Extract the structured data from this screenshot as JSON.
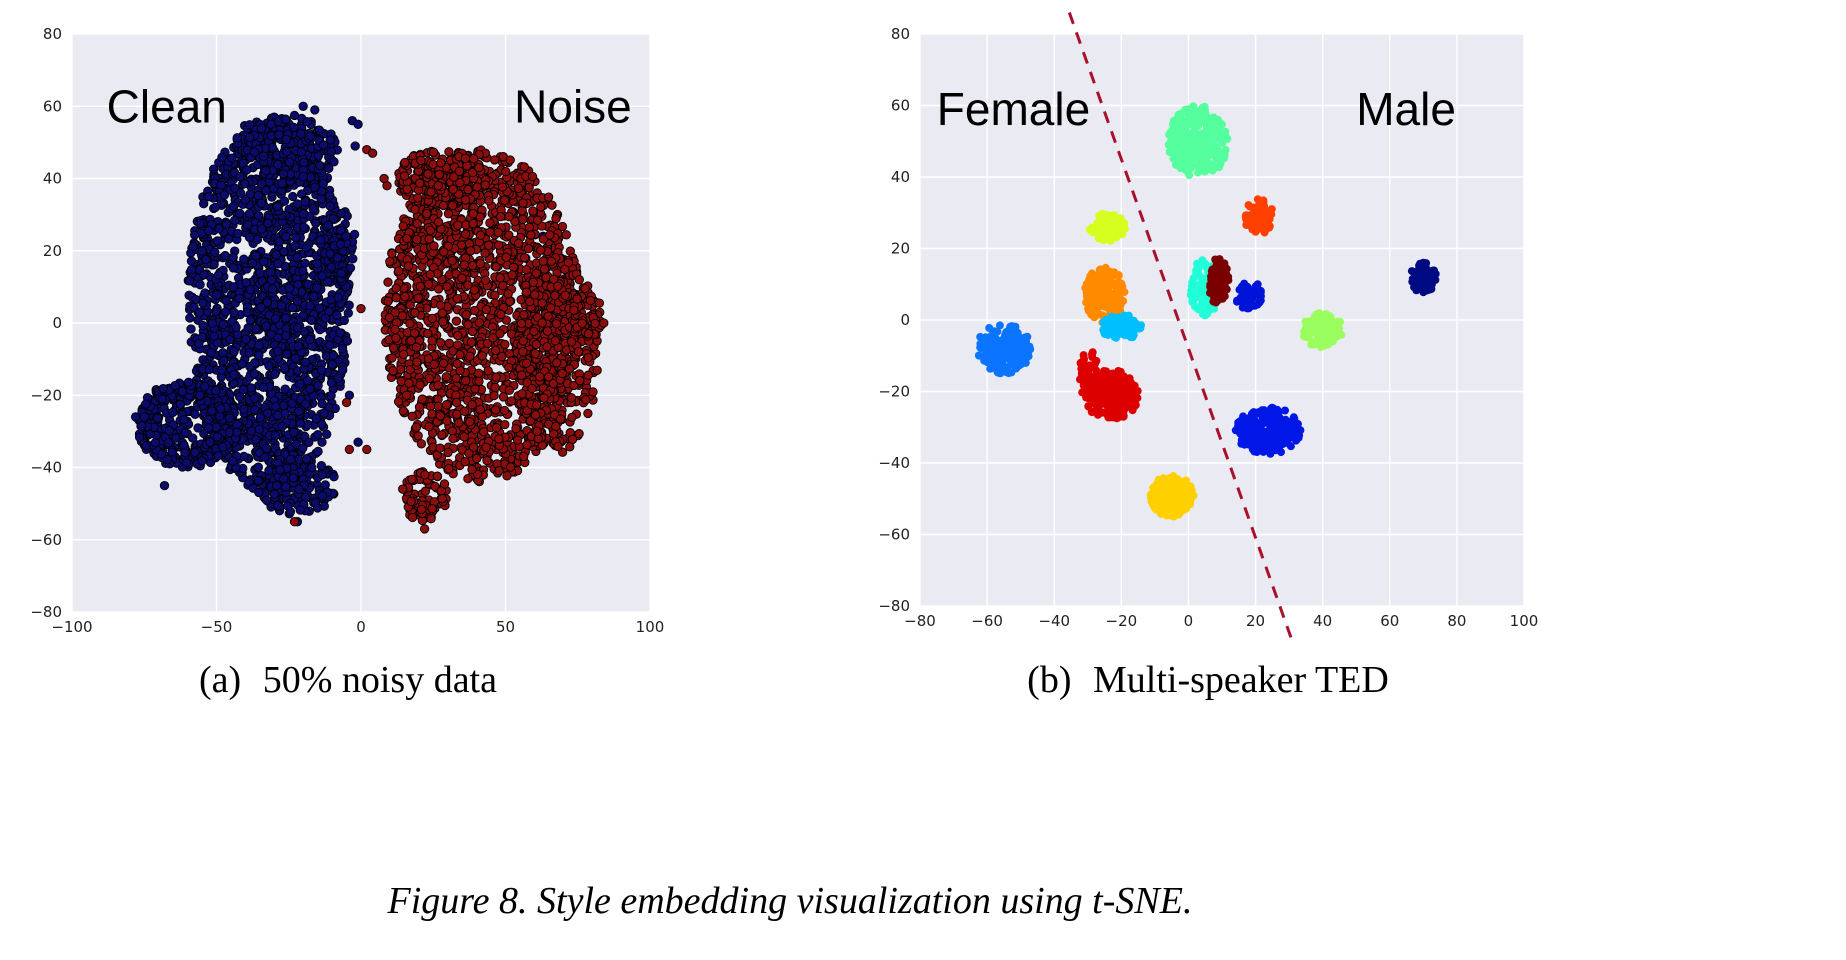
{
  "figure": {
    "caption": "Figure 8. Style embedding visualization using t-SNE."
  },
  "chart_data": [
    {
      "type": "scatter",
      "subcaption_label": "(a)",
      "subcaption_text": "50% noisy data",
      "xlim": [
        -100,
        100
      ],
      "ylim": [
        -80,
        80
      ],
      "xticks": [
        -100,
        -50,
        0,
        50,
        100
      ],
      "yticks": [
        -80,
        -60,
        -40,
        -20,
        0,
        20,
        40,
        60,
        80
      ],
      "xtick_labels": [
        "−100",
        "−50",
        "0",
        "50",
        "100"
      ],
      "ytick_labels": [
        "−80",
        "−60",
        "−40",
        "−20",
        "0",
        "20",
        "40",
        "60",
        "80"
      ],
      "grid": true,
      "background": "#eaeaf2",
      "annotations": [
        {
          "text": "Clean",
          "x": -88,
          "y": 60
        },
        {
          "text": "Noise",
          "x": 53,
          "y": 60
        }
      ],
      "series": [
        {
          "color": "#0b0b6e",
          "edge": "#000000",
          "radius": 4.2,
          "regions": [
            {
              "cx": -32,
              "cy": 5,
              "rx": 28,
              "ry": 52,
              "n": 1700,
              "falloff": 0.55
            },
            {
              "cx": -60,
              "cy": -28,
              "rx": 18,
              "ry": 12,
              "n": 380,
              "falloff": 0.4
            },
            {
              "cx": -24,
              "cy": 48,
              "rx": 16,
              "ry": 10,
              "n": 180,
              "falloff": 0.5
            },
            {
              "cx": -22,
              "cy": -45,
              "rx": 14,
              "ry": 8,
              "n": 140,
              "falloff": 0.5
            },
            {
              "cx": -8,
              "cy": 22,
              "rx": 6,
              "ry": 10,
              "n": 60,
              "falloff": 0.6
            }
          ],
          "points": [
            [
              -20,
              60
            ],
            [
              -3,
              56
            ],
            [
              -1,
              55
            ],
            [
              -16,
              59
            ],
            [
              -2,
              49
            ],
            [
              60,
              -13
            ],
            [
              63,
              24
            ],
            [
              -78,
              -26
            ],
            [
              -75,
              -26
            ],
            [
              -68,
              -45
            ],
            [
              -22,
              -55
            ],
            [
              -4,
              -20
            ],
            [
              -1,
              -33
            ]
          ]
        },
        {
          "color": "#8b0d0d",
          "edge": "#000000",
          "radius": 4.2,
          "regions": [
            {
              "cx": 42,
              "cy": 2,
              "rx": 34,
              "ry": 46,
              "n": 1750,
              "falloff": 0.5
            },
            {
              "cx": 68,
              "cy": -8,
              "rx": 14,
              "ry": 28,
              "n": 300,
              "falloff": 0.45
            },
            {
              "cx": 78,
              "cy": 2,
              "rx": 6,
              "ry": 6,
              "n": 60,
              "falloff": 0.5
            },
            {
              "cx": 22,
              "cy": -48,
              "rx": 8,
              "ry": 7,
              "n": 80,
              "falloff": 0.5
            },
            {
              "cx": 28,
              "cy": 40,
              "rx": 16,
              "ry": 8,
              "n": 200,
              "falloff": 0.5
            }
          ],
          "points": [
            [
              2,
              48
            ],
            [
              4,
              47
            ],
            [
              9,
              38
            ],
            [
              8,
              40
            ],
            [
              22,
              -57
            ],
            [
              -23,
              -55
            ],
            [
              -5,
              -22
            ],
            [
              2,
              -35
            ],
            [
              0,
              4
            ],
            [
              84,
              0
            ],
            [
              -4,
              -35
            ]
          ]
        }
      ]
    },
    {
      "type": "scatter",
      "subcaption_label": "(b)",
      "subcaption_text": "Multi-speaker TED",
      "xlim": [
        -80,
        100
      ],
      "ylim": [
        -80,
        80
      ],
      "xticks": [
        -80,
        -60,
        -40,
        -20,
        0,
        20,
        40,
        60,
        80,
        100
      ],
      "yticks": [
        -80,
        -60,
        -40,
        -20,
        0,
        20,
        40,
        60,
        80
      ],
      "xtick_labels": [
        "−80",
        "−60",
        "−40",
        "−20",
        "0",
        "20",
        "40",
        "60",
        "80",
        "100"
      ],
      "ytick_labels": [
        "−80",
        "−60",
        "−40",
        "−20",
        "0",
        "20",
        "40",
        "60",
        "80"
      ],
      "grid": true,
      "background": "#eaeaf2",
      "annotations": [
        {
          "text": "Female",
          "x": -75,
          "y": 59
        },
        {
          "text": "Male",
          "x": 50,
          "y": 59
        }
      ],
      "divider": {
        "x1": -35.5,
        "y1": 86,
        "x2": 31,
        "y2": -90,
        "color": "#a8102c",
        "dash": "12,9"
      },
      "series": [
        {
          "color": "#55ff9e",
          "radius": 4,
          "regions": [
            {
              "cx": 3,
              "cy": 50,
              "rx": 9,
              "ry": 10,
              "n": 260,
              "falloff": 0.6
            }
          ]
        },
        {
          "color": "#ff4000",
          "radius": 4,
          "regions": [
            {
              "cx": 21,
              "cy": 29,
              "rx": 4.5,
              "ry": 5,
              "n": 90,
              "falloff": 0.6
            }
          ]
        },
        {
          "color": "#d6ff1f",
          "radius": 4,
          "regions": [
            {
              "cx": -24,
              "cy": 26,
              "rx": 5.5,
              "ry": 4,
              "n": 100,
              "falloff": 0.6
            }
          ]
        },
        {
          "color": "#20ffd8",
          "radius": 4,
          "regions": [
            {
              "cx": 5,
              "cy": 9,
              "rx": 4.5,
              "ry": 8,
              "n": 100,
              "falloff": 0.6
            }
          ]
        },
        {
          "color": "#7a0000",
          "radius": 4,
          "regions": [
            {
              "cx": 9,
              "cy": 11,
              "rx": 3,
              "ry": 7,
              "n": 60,
              "falloff": 0.6
            }
          ]
        },
        {
          "color": "#0014d8",
          "radius": 4,
          "regions": [
            {
              "cx": 18,
              "cy": 7,
              "rx": 4,
              "ry": 4,
              "n": 50,
              "falloff": 0.6
            }
          ]
        },
        {
          "color": "#000a82",
          "radius": 4,
          "regions": [
            {
              "cx": 70,
              "cy": 12,
              "rx": 4,
              "ry": 4.5,
              "n": 60,
              "falloff": 0.6
            }
          ]
        },
        {
          "color": "#9aff5e",
          "radius": 4,
          "regions": [
            {
              "cx": 40,
              "cy": -3,
              "rx": 6,
              "ry": 5,
              "n": 110,
              "falloff": 0.6
            }
          ]
        },
        {
          "color": "#ff8a00",
          "radius": 4,
          "regions": [
            {
              "cx": -25,
              "cy": 7,
              "rx": 6,
              "ry": 8,
              "n": 170,
              "falloff": 0.6
            }
          ]
        },
        {
          "color": "#00bfff",
          "radius": 4,
          "regions": [
            {
              "cx": -20,
              "cy": -2,
              "rx": 6,
              "ry": 3.5,
              "n": 80,
              "falloff": 0.6
            }
          ]
        },
        {
          "color": "#0a74ff",
          "radius": 4,
          "regions": [
            {
              "cx": -55,
              "cy": -8,
              "rx": 8,
              "ry": 7,
              "n": 200,
              "falloff": 0.6
            }
          ]
        },
        {
          "color": "#dd0000",
          "radius": 4,
          "regions": [
            {
              "cx": -23,
              "cy": -21,
              "rx": 8,
              "ry": 7,
              "n": 220,
              "falloff": 0.6
            },
            {
              "cx": -30,
              "cy": -15,
              "rx": 3,
              "ry": 7,
              "n": 40,
              "falloff": 0.6
            }
          ]
        },
        {
          "color": "#0017e6",
          "radius": 4,
          "regions": [
            {
              "cx": 24,
              "cy": -31,
              "rx": 10,
              "ry": 6.5,
              "n": 230,
              "falloff": 0.6
            }
          ]
        },
        {
          "color": "#ffd000",
          "radius": 4,
          "regions": [
            {
              "cx": -5,
              "cy": -49,
              "rx": 6.5,
              "ry": 6,
              "n": 150,
              "falloff": 0.6
            }
          ]
        }
      ]
    }
  ]
}
